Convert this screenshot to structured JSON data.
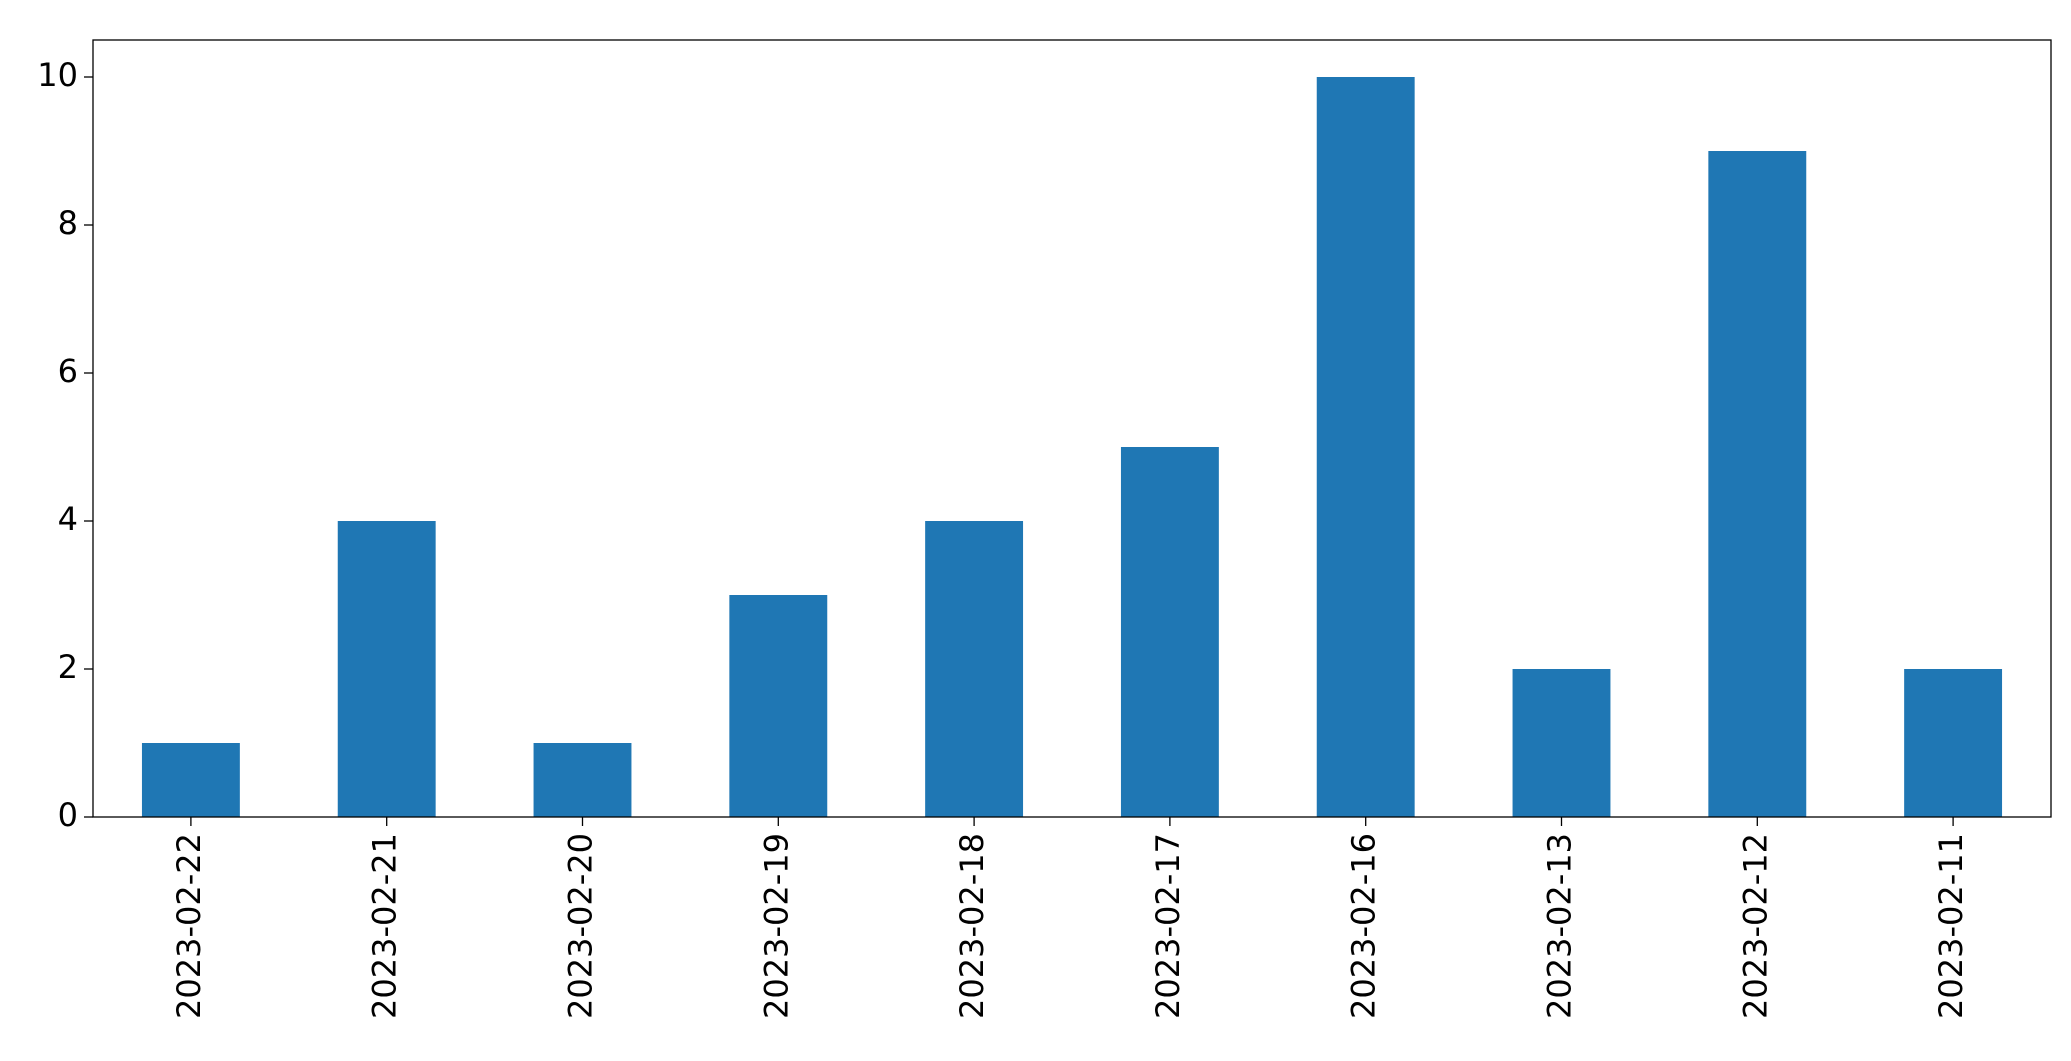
{
  "chart_data": {
    "type": "bar",
    "categories": [
      "2023-02-22",
      "2023-02-21",
      "2023-02-20",
      "2023-02-19",
      "2023-02-18",
      "2023-02-17",
      "2023-02-16",
      "2023-02-13",
      "2023-02-12",
      "2023-02-11"
    ],
    "values": [
      1,
      4,
      1,
      3,
      4,
      5,
      10,
      2,
      9,
      2
    ],
    "color": "#1f77b4",
    "ylim": [
      0,
      10.5
    ],
    "yticks": [
      0,
      2,
      4,
      6,
      8,
      10
    ],
    "grid": false
  }
}
